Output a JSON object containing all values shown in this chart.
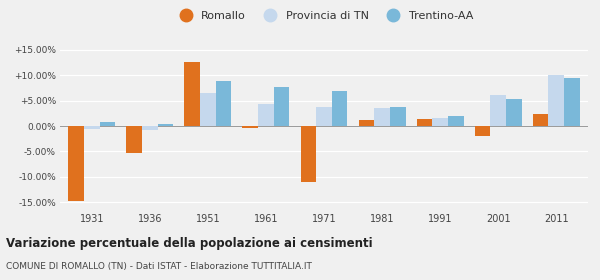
{
  "years": [
    1931,
    1936,
    1951,
    1961,
    1971,
    1981,
    1991,
    2001,
    2011
  ],
  "romallo": [
    -14.8,
    -5.4,
    12.5,
    -0.3,
    -11.0,
    1.1,
    1.4,
    -1.9,
    2.4
  ],
  "provincia_tn": [
    -0.5,
    -0.8,
    6.4,
    4.4,
    3.8,
    3.5,
    1.5,
    6.0,
    10.0
  ],
  "trentino_aa": [
    0.7,
    0.3,
    8.8,
    7.7,
    6.9,
    3.8,
    1.9,
    5.4,
    9.5
  ],
  "romallo_color": "#e0711e",
  "provincia_color": "#c5d8ed",
  "trentino_color": "#7ab8d9",
  "background_color": "#f0f0f0",
  "grid_color": "#ffffff",
  "ylim": [
    -16.5,
    16.5
  ],
  "yticks": [
    -15,
    -10,
    -5,
    0,
    5,
    10,
    15
  ],
  "ytick_labels": [
    "-15.00%",
    "-10.00%",
    "-5.00%",
    "0.00%",
    "+5.00%",
    "+10.00%",
    "+15.00%"
  ],
  "title": "Variazione percentuale della popolazione ai censimenti",
  "subtitle": "COMUNE DI ROMALLO (TN) - Dati ISTAT - Elaborazione TUTTITALIA.IT",
  "legend_labels": [
    "Romallo",
    "Provincia di TN",
    "Trentino-AA"
  ],
  "bar_width": 0.27
}
